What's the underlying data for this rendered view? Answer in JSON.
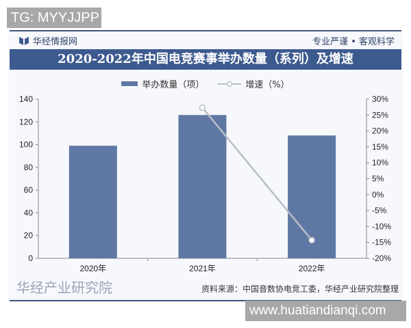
{
  "overlay_top": "TG: MYYJJPP",
  "overlay_bottom": "www.huatiandianqi.com",
  "header": {
    "brand": "华经情报网",
    "slogan": "专业严谨 • 客观科学"
  },
  "footer": {
    "source": "资料来源：中国音数协电竞工委，华经产业研究院整理",
    "watermark": "华经产业研究院"
  },
  "colors": {
    "bar": "#5f77a3",
    "line": "#b8bec8",
    "title_band": "#3d5a8f"
  },
  "chart_data": {
    "type": "bar+line",
    "title": "2020-2022年中国电竞赛事举办数量（系列）及增速",
    "categories": [
      "2020年",
      "2021年",
      "2022年"
    ],
    "series": [
      {
        "name": "举办数量（项）",
        "type": "bar",
        "axis": "left",
        "values": [
          99,
          126,
          108
        ]
      },
      {
        "name": "增速（%）",
        "type": "line",
        "axis": "right",
        "values": [
          null,
          27.3,
          -14.3
        ]
      }
    ],
    "left_axis": {
      "ylim": [
        0,
        140
      ],
      "ticks": [
        "0",
        "20",
        "40",
        "60",
        "80",
        "100",
        "120",
        "140"
      ]
    },
    "right_axis": {
      "ylim": [
        -20,
        30
      ],
      "ticks": [
        "-20%",
        "-15%",
        "-10%",
        "-5%",
        "0%",
        "5%",
        "10%",
        "15%",
        "20%",
        "25%",
        "30%"
      ]
    },
    "legend": "top-center",
    "grid": false
  }
}
